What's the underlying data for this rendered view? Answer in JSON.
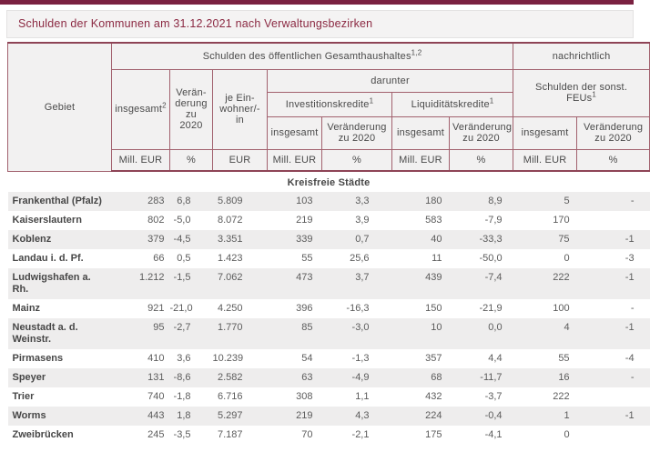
{
  "page": {
    "title": "Schulden der Kommunen am 31.12.2021 nach Verwaltungsbezirken"
  },
  "colors": {
    "top_bar": "#7a2141",
    "title_text": "#8b2942",
    "title_bg": "#f4f3f3",
    "table_border": "#a2616e",
    "table_border_strong": "#8e4456",
    "header_bg": "#f2f1f1",
    "row_alt_bg": "#eeeded",
    "text": "#4a4a4a"
  },
  "table": {
    "header": {
      "gebiet": "Gebiet",
      "group_main": "Schulden des öffentlichen Gesamthaushaltes",
      "group_main_sup": "1,2",
      "group_note": "nachrichtlich",
      "total_label": "insgesamt",
      "total_sup": "2",
      "change_label": "Verän-\nderung\nzu\n2020",
      "per_capita_label": "je Ein-\nwohner/-in",
      "darunter": "darunter",
      "invest_label": "Investitionskredite",
      "invest_sup": "1",
      "liquid_label": "Liquiditätskredite",
      "liquid_sup": "1",
      "feus_line1": "Schulden der sonst.",
      "feus_line2": "FEUs",
      "feus_sup": "1",
      "sub_pairs": [
        "insgesamt",
        "Veränderung\nzu 2020",
        "insgesamt",
        "Veränderung\nzu 2020",
        "insgesamt",
        "Veränderung\nzu 2020"
      ],
      "units": [
        "Mill. EUR",
        "%",
        "EUR",
        "Mill. EUR",
        "%",
        "Mill. EUR",
        "%",
        "Mill. EUR",
        "%"
      ]
    },
    "section_label": "Kreisfreie Städte",
    "rows": [
      {
        "name": "Frankenthal (Pfalz)",
        "values": [
          "283",
          "6,8",
          "5.809",
          "103",
          "3,3",
          "180",
          "8,9",
          "5",
          "-"
        ]
      },
      {
        "name": "Kaiserslautern",
        "values": [
          "802",
          "-5,0",
          "8.072",
          "219",
          "3,9",
          "583",
          "-7,9",
          "170",
          ""
        ]
      },
      {
        "name": "Koblenz",
        "values": [
          "379",
          "-4,5",
          "3.351",
          "339",
          "0,7",
          "40",
          "-33,3",
          "75",
          "-1"
        ]
      },
      {
        "name": "Landau i. d. Pf.",
        "values": [
          "66",
          "0,5",
          "1.423",
          "55",
          "25,6",
          "11",
          "-50,0",
          "0",
          "-3"
        ]
      },
      {
        "name": "Ludwigshafen a. Rh.",
        "values": [
          "1.212",
          "-1,5",
          "7.062",
          "473",
          "3,7",
          "439",
          "-7,4",
          "222",
          "-1"
        ]
      },
      {
        "name": "Mainz",
        "values": [
          "921",
          "-21,0",
          "4.250",
          "396",
          "-16,3",
          "150",
          "-21,9",
          "100",
          "-"
        ]
      },
      {
        "name": "Neustadt a. d. Weinstr.",
        "values": [
          "95",
          "-2,7",
          "1.770",
          "85",
          "-3,0",
          "10",
          "0,0",
          "4",
          "-1"
        ]
      },
      {
        "name": "Pirmasens",
        "values": [
          "410",
          "3,6",
          "10.239",
          "54",
          "-1,3",
          "357",
          "4,4",
          "55",
          "-4"
        ]
      },
      {
        "name": "Speyer",
        "values": [
          "131",
          "-8,6",
          "2.582",
          "63",
          "-4,9",
          "68",
          "-11,7",
          "16",
          "-"
        ]
      },
      {
        "name": "Trier",
        "values": [
          "740",
          "-1,8",
          "6.716",
          "308",
          "1,1",
          "432",
          "-3,7",
          "222",
          ""
        ]
      },
      {
        "name": "Worms",
        "values": [
          "443",
          "1,8",
          "5.297",
          "219",
          "4,3",
          "224",
          "-0,4",
          "1",
          "-1"
        ]
      },
      {
        "name": "Zweibrücken",
        "values": [
          "245",
          "-3,5",
          "7.187",
          "70",
          "-2,1",
          "175",
          "-4,1",
          "0",
          ""
        ]
      }
    ]
  }
}
